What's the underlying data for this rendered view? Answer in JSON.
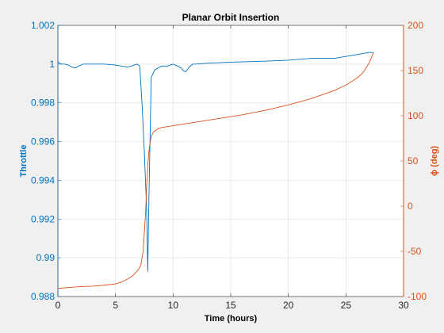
{
  "chart_data": {
    "type": "line",
    "title": "Planar Orbit Insertion",
    "xlabel": "Time (hours)",
    "ylabel_left": "Throttle",
    "ylabel_right": "ϕ (deg)",
    "xlim": [
      0,
      30
    ],
    "ylim_left": [
      0.988,
      1.002
    ],
    "ylim_right": [
      -100,
      200
    ],
    "xticks": [
      "0",
      "5",
      "10",
      "15",
      "20",
      "25",
      "30"
    ],
    "yticks_left": [
      "0.988",
      "0.99",
      "0.992",
      "0.994",
      "0.996",
      "0.998",
      "1",
      "1.002"
    ],
    "yticks_right": [
      "-100",
      "-50",
      "0",
      "50",
      "100",
      "150",
      "200"
    ],
    "grid": true,
    "colors": {
      "left": "#0072BD",
      "right": "#D95319"
    },
    "series": [
      {
        "axis": "left",
        "x": [
          0,
          0.3,
          0.6,
          0.9,
          1.2,
          1.5,
          1.8,
          2.2,
          3,
          4,
          5,
          5.5,
          6,
          6.4,
          6.6,
          6.9,
          7.1,
          7.3,
          7.5,
          7.7,
          7.8,
          7.9,
          8.1,
          8.4,
          8.7,
          9,
          9.5,
          10,
          10.4,
          10.7,
          10.9,
          11.1,
          11.4,
          11.7,
          12,
          13,
          15,
          18,
          20,
          22,
          24,
          26,
          27,
          27.4
        ],
        "y": [
          1.0001,
          1.0,
          1.0,
          0.99995,
          0.99985,
          0.9998,
          0.9999,
          1.0,
          1.0,
          1.0,
          0.99995,
          0.9999,
          0.99985,
          0.9999,
          0.99995,
          1.0,
          0.9999,
          0.998,
          0.9955,
          0.9925,
          0.9893,
          0.993,
          0.9993,
          0.9997,
          0.9998,
          0.9999,
          0.9999,
          1.0,
          0.9999,
          0.9998,
          0.99965,
          0.9996,
          0.99985,
          1.0,
          1.0,
          1.00005,
          1.0001,
          1.00015,
          1.0002,
          1.0003,
          1.0003,
          1.0005,
          1.0006,
          1.0006
        ]
      },
      {
        "axis": "right",
        "x": [
          0,
          1,
          2,
          3,
          4,
          5,
          5.5,
          6,
          6.5,
          7,
          7.2,
          7.4,
          7.5,
          7.6,
          7.7,
          7.8,
          7.9,
          8,
          8.1,
          8.3,
          8.6,
          9,
          10,
          12,
          14,
          16,
          18,
          20,
          22,
          24,
          25,
          26,
          26.5,
          27,
          27.4
        ],
        "y": [
          -91,
          -90,
          -89,
          -88.5,
          -87.5,
          -86,
          -84,
          -81,
          -77,
          -70,
          -65,
          -50,
          -30,
          -10,
          20,
          45,
          60,
          70,
          77,
          82,
          85,
          87,
          89,
          93,
          97,
          101,
          106,
          112,
          119,
          128,
          134,
          142,
          148,
          158,
          170
        ]
      }
    ]
  }
}
